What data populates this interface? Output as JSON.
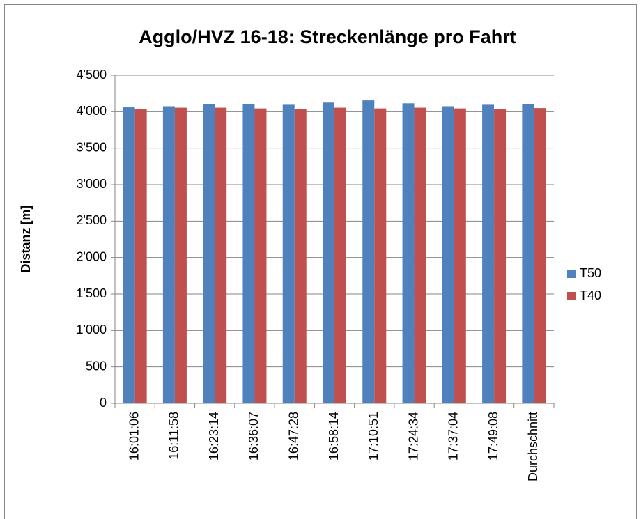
{
  "chart_data": {
    "type": "bar",
    "title": "Agglo/HVZ 16-18: Streckenlänge pro Fahrt",
    "y_label": "Distanz [m]",
    "categories": [
      "16:01:06",
      "16:11:58",
      "16:23:14",
      "16:36:07",
      "16:47:28",
      "16:58:14",
      "17:10:51",
      "17:24:34",
      "17:37:04",
      "17:49:08",
      "Durchschnitt"
    ],
    "series": [
      {
        "name": "T50",
        "color": "#4f81bd",
        "values": [
          4060,
          4075,
          4105,
          4105,
          4095,
          4125,
          4155,
          4115,
          4075,
          4095,
          4105
        ]
      },
      {
        "name": "T40",
        "color": "#c0504d",
        "values": [
          4040,
          4055,
          4055,
          4045,
          4040,
          4055,
          4045,
          4055,
          4045,
          4040,
          4050
        ]
      }
    ],
    "ylim": [
      0,
      4500
    ],
    "yticks": [
      0,
      500,
      {
        "value": 1000,
        "label": "1'000"
      },
      {
        "value": 1500,
        "label": "1'500"
      },
      {
        "value": 2000,
        "label": "2'000"
      },
      {
        "value": 2500,
        "label": "2'500"
      },
      {
        "value": 3000,
        "label": "3'000"
      },
      {
        "value": 3500,
        "label": "3'500"
      },
      {
        "value": 4000,
        "label": "4'000"
      },
      {
        "value": 4500,
        "label": "4'500"
      }
    ],
    "grid": true,
    "legend": "right"
  }
}
